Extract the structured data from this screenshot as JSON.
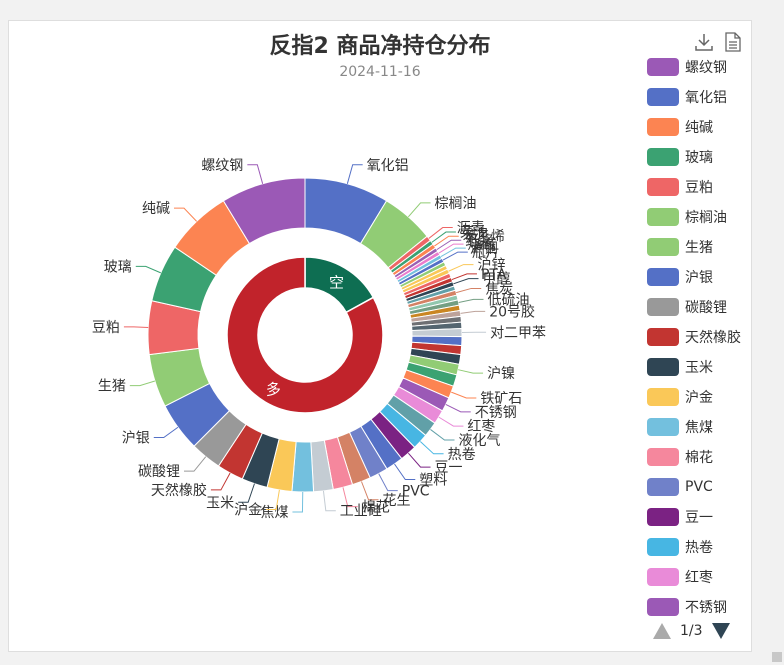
{
  "title": "反指2 商品净持仓分布",
  "subtitle": "2024-11-16",
  "toolbox": {
    "download_icon": "download-icon",
    "data_view_icon": "data-view-icon"
  },
  "legend": [
    {
      "label": "螺纹钢",
      "color": "#9b59b6"
    },
    {
      "label": "氧化铝",
      "color": "#5470c6"
    },
    {
      "label": "纯碱",
      "color": "#fc8452"
    },
    {
      "label": "玻璃",
      "color": "#3ba272"
    },
    {
      "label": "豆粕",
      "color": "#ee6666"
    },
    {
      "label": "棕榈油",
      "color": "#91cc75"
    },
    {
      "label": "生猪",
      "color": "#91cc75"
    },
    {
      "label": "沪银",
      "color": "#5470c6"
    },
    {
      "label": "碳酸锂",
      "color": "#999999"
    },
    {
      "label": "天然橡胶",
      "color": "#c23531"
    },
    {
      "label": "玉米",
      "color": "#2f4554"
    },
    {
      "label": "沪金",
      "color": "#fac858"
    },
    {
      "label": "焦煤",
      "color": "#73c0de"
    },
    {
      "label": "棉花",
      "color": "#f5879d"
    },
    {
      "label": "PVC",
      "color": "#7081c9"
    },
    {
      "label": "豆一",
      "color": "#7b2283"
    },
    {
      "label": "热卷",
      "color": "#47b6e3"
    },
    {
      "label": "红枣",
      "color": "#e98bd8"
    },
    {
      "label": "不锈钢",
      "color": "#9b59b6"
    }
  ],
  "pager": {
    "text": "1/3"
  },
  "chart_data": {
    "type": "pie",
    "title": "反指2 商品净持仓分布",
    "subtitle": "2024-11-16",
    "inner": [
      {
        "name": "空",
        "value": 17,
        "color": "#0e6e52"
      },
      {
        "name": "多",
        "value": 83,
        "color": "#c1232b"
      }
    ],
    "outer_start": 90,
    "outer": [
      {
        "name": "氧化铝",
        "value": 9.5,
        "color": "#5470c6"
      },
      {
        "name": "棕榈油",
        "value": 6.0,
        "color": "#91cc75"
      },
      {
        "name": "沥青",
        "value": 0.6,
        "color": "#ee6666"
      },
      {
        "name": "菜油",
        "value": 0.5,
        "color": "#3ba272"
      },
      {
        "name": "苯乙烯",
        "value": 0.5,
        "color": "#fc8452"
      },
      {
        "name": "纸浆",
        "value": 0.45,
        "color": "#9a60b4"
      },
      {
        "name": "烧碱",
        "value": 0.45,
        "color": "#ea7ccc"
      },
      {
        "name": "沪铜",
        "value": 0.45,
        "color": "#73c0de"
      },
      {
        "name": "瓶片",
        "value": 0.45,
        "color": "#5470c6"
      },
      {
        "name": "",
        "value": 0.45,
        "color": "#91cc75"
      },
      {
        "name": "",
        "value": 0.45,
        "color": "#fac858"
      },
      {
        "name": "沪锌",
        "value": 0.5,
        "color": "#fac858"
      },
      {
        "name": "",
        "value": 0.5,
        "color": "#ee6666"
      },
      {
        "name": "PTA",
        "value": 0.5,
        "color": "#c23531"
      },
      {
        "name": "甲醇",
        "value": 0.5,
        "color": "#2f4554"
      },
      {
        "name": "",
        "value": 0.5,
        "color": "#61a0a8"
      },
      {
        "name": "焦炭",
        "value": 0.55,
        "color": "#d48265"
      },
      {
        "name": "",
        "value": 0.55,
        "color": "#91c7ae"
      },
      {
        "name": "低硫油",
        "value": 0.6,
        "color": "#749f83"
      },
      {
        "name": "",
        "value": 0.6,
        "color": "#ca8622"
      },
      {
        "name": "20号胶",
        "value": 0.65,
        "color": "#bda29a"
      },
      {
        "name": "",
        "value": 0.65,
        "color": "#6e7074"
      },
      {
        "name": "",
        "value": 0.7,
        "color": "#546570"
      },
      {
        "name": "对二甲苯",
        "value": 0.9,
        "color": "#c4ccd3"
      },
      {
        "name": "",
        "value": 1.0,
        "color": "#5470c6"
      },
      {
        "name": "",
        "value": 1.0,
        "color": "#c23531"
      },
      {
        "name": "",
        "value": 1.1,
        "color": "#2f4554"
      },
      {
        "name": "沪镍",
        "value": 1.2,
        "color": "#91cc75"
      },
      {
        "name": "",
        "value": 1.3,
        "color": "#3ba272"
      },
      {
        "name": "铁矿石",
        "value": 1.4,
        "color": "#fc8452"
      },
      {
        "name": "不锈钢",
        "value": 1.6,
        "color": "#9b59b6"
      },
      {
        "name": "红枣",
        "value": 1.6,
        "color": "#e98bd8"
      },
      {
        "name": "液化气",
        "value": 1.7,
        "color": "#61a0a8"
      },
      {
        "name": "热卷",
        "value": 1.8,
        "color": "#47b6e3"
      },
      {
        "name": "豆一",
        "value": 1.9,
        "color": "#7b2283"
      },
      {
        "name": "塑料",
        "value": 2.0,
        "color": "#5470c6"
      },
      {
        "name": "PVC",
        "value": 2.1,
        "color": "#7081c9"
      },
      {
        "name": "花生",
        "value": 2.1,
        "color": "#d48265"
      },
      {
        "name": "棉花",
        "value": 2.2,
        "color": "#f5879d"
      },
      {
        "name": "工业硅",
        "value": 2.2,
        "color": "#c4ccd3"
      },
      {
        "name": "焦煤",
        "value": 2.4,
        "color": "#73c0de"
      },
      {
        "name": "沪金",
        "value": 2.8,
        "color": "#fac858"
      },
      {
        "name": "玉米",
        "value": 2.9,
        "color": "#2f4554"
      },
      {
        "name": "天然橡胶",
        "value": 3.0,
        "color": "#c23531"
      },
      {
        "name": "碳酸锂",
        "value": 3.5,
        "color": "#999999"
      },
      {
        "name": "沪银",
        "value": 5.5,
        "color": "#5470c6"
      },
      {
        "name": "生猪",
        "value": 6.0,
        "color": "#91cc75"
      },
      {
        "name": "豆粕",
        "value": 6.0,
        "color": "#ee6666"
      },
      {
        "name": "玻璃",
        "value": 6.5,
        "color": "#3ba272"
      },
      {
        "name": "纯碱",
        "value": 7.5,
        "color": "#fc8452"
      },
      {
        "name": "螺纹钢",
        "value": 9.5,
        "color": "#9b59b6"
      }
    ]
  }
}
